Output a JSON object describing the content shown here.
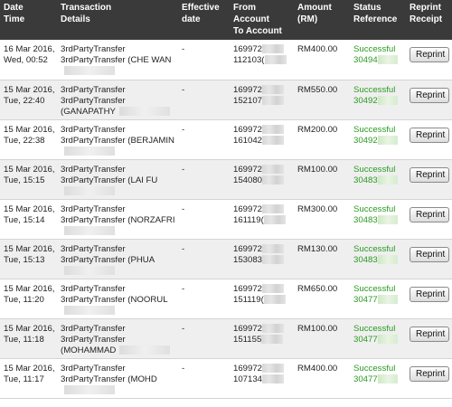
{
  "table": {
    "headers": {
      "date_time": "Date\nTime",
      "transaction_details": "Transaction\nDetails",
      "effective_date": "Effective\ndate",
      "from_to_account": "From\nAccount\nTo Account",
      "amount": "Amount\n(RM)",
      "status_reference": "Status\nReference",
      "reprint_receipt": "Reprint\nReceipt"
    },
    "rows": [
      {
        "date": "16 Mar 2016,",
        "time": "Wed, 00:52",
        "type": "3rdPartyTransfer",
        "details": "3rdPartyTransfer (CHE WAN",
        "details2": "",
        "effective": "-",
        "from": "169972",
        "to": "112103(",
        "amount": "RM400.00",
        "status": "Successful",
        "ref": "30494",
        "reprint": "Reprint"
      },
      {
        "date": "15 Mar 2016,",
        "time": "Tue, 22:40",
        "type": "3rdPartyTransfer",
        "details": "3rdPartyTransfer",
        "details2": "(GANAPATHY",
        "effective": "-",
        "from": "169972",
        "to": "152107",
        "amount": "RM550.00",
        "status": "Successful",
        "ref": "30492",
        "reprint": "Reprint"
      },
      {
        "date": "15 Mar 2016,",
        "time": "Tue, 22:38",
        "type": "3rdPartyTransfer",
        "details": "3rdPartyTransfer (BERJAMIN",
        "details2": "",
        "effective": "-",
        "from": "169972",
        "to": "161042",
        "amount": "RM200.00",
        "status": "Successful",
        "ref": "30492",
        "reprint": "Reprint"
      },
      {
        "date": "15 Mar 2016,",
        "time": "Tue, 15:15",
        "type": "3rdPartyTransfer",
        "details": "3rdPartyTransfer (LAI FU",
        "details2": "",
        "effective": "-",
        "from": "169972",
        "to": "154080",
        "amount": "RM100.00",
        "status": "Successful",
        "ref": "30483",
        "reprint": "Reprint"
      },
      {
        "date": "15 Mar 2016,",
        "time": "Tue, 15:14",
        "type": "3rdPartyTransfer",
        "details": "3rdPartyTransfer (NORZAFRI",
        "details2": "",
        "effective": "-",
        "from": "169972",
        "to": "161119(",
        "amount": "RM300.00",
        "status": "Successful",
        "ref": "30483",
        "reprint": "Reprint"
      },
      {
        "date": "15 Mar 2016,",
        "time": "Tue, 15:13",
        "type": "3rdPartyTransfer",
        "details": "3rdPartyTransfer (PHUA",
        "details2": "",
        "effective": "-",
        "from": "169972",
        "to": "153083",
        "amount": "RM130.00",
        "status": "Successful",
        "ref": "30483",
        "reprint": "Reprint"
      },
      {
        "date": "15 Mar 2016,",
        "time": "Tue, 11:20",
        "type": "3rdPartyTransfer",
        "details": "3rdPartyTransfer (NOORUL",
        "details2": "",
        "effective": "-",
        "from": "169972",
        "to": "151119(",
        "amount": "RM650.00",
        "status": "Successful",
        "ref": "30477",
        "reprint": "Reprint"
      },
      {
        "date": "15 Mar 2016,",
        "time": "Tue, 11:18",
        "type": "3rdPartyTransfer",
        "details": "3rdPartyTransfer",
        "details2": "(MOHAMMAD",
        "effective": "-",
        "from": "169972",
        "to": "151155",
        "amount": "RM100.00",
        "status": "Successful",
        "ref": "30477",
        "reprint": "Reprint"
      },
      {
        "date": "15 Mar 2016,",
        "time": "Tue, 11:17",
        "type": "3rdPartyTransfer",
        "details": "3rdPartyTransfer (MOHD",
        "details2": "",
        "effective": "-",
        "from": "169972",
        "to": "107134",
        "amount": "RM400.00",
        "status": "Successful",
        "ref": "30477",
        "reprint": "Reprint"
      }
    ]
  },
  "colors": {
    "header_bg": "#3a3a3a",
    "status_green": "#2a9a20",
    "row_alt": "#efefef"
  }
}
